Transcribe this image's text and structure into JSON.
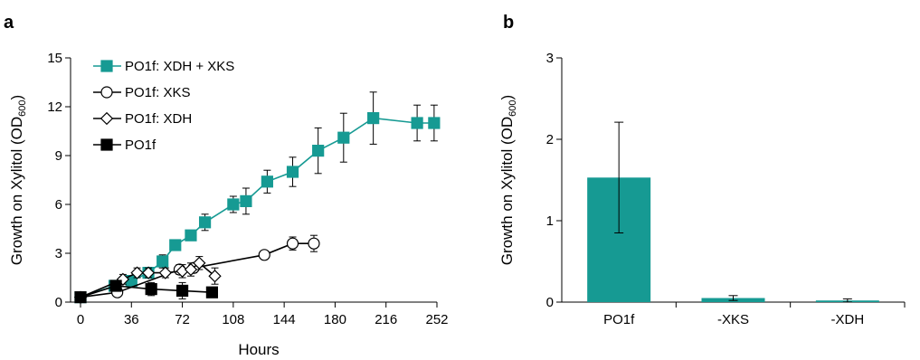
{
  "colors": {
    "teal": "#169a93",
    "black": "#000000",
    "white": "#ffffff"
  },
  "chart_data": [
    {
      "panel": "a",
      "type": "line",
      "xlabel": "Hours",
      "ylabel": "Growth on Xylitol (OD",
      "ylabel_sub": "600",
      "ylabel_close": ")",
      "xlim": [
        0,
        252
      ],
      "ylim": [
        0,
        15
      ],
      "xticks": [
        0,
        36,
        72,
        108,
        144,
        180,
        216,
        252
      ],
      "yticks": [
        0,
        3,
        6,
        9,
        12,
        15
      ],
      "legend_placement": "top-left",
      "series": [
        {
          "name": "PO1f: XDH + XKS",
          "marker": "square",
          "color": "#169a93",
          "fill": "#169a93",
          "x": [
            0,
            24,
            36,
            48,
            58,
            67,
            78,
            88,
            108,
            117,
            132,
            150,
            168,
            186,
            207,
            238,
            250
          ],
          "y": [
            0.3,
            1.0,
            1.3,
            1.8,
            2.5,
            3.5,
            4.1,
            4.9,
            6.0,
            6.2,
            7.4,
            8.0,
            9.3,
            10.1,
            11.3,
            11.0,
            11.0
          ],
          "err": [
            0.1,
            0.2,
            0.2,
            0.3,
            0.4,
            0.3,
            0.3,
            0.5,
            0.5,
            0.8,
            0.7,
            0.9,
            1.4,
            1.5,
            1.6,
            1.1,
            1.1
          ]
        },
        {
          "name": "PO1f: XKS",
          "marker": "circle",
          "color": "#000000",
          "fill": "#ffffff",
          "x": [
            0,
            26,
            70,
            80,
            130,
            150,
            165
          ],
          "y": [
            0.3,
            0.6,
            2.0,
            2.1,
            2.9,
            3.6,
            3.6
          ],
          "err": [
            0.1,
            0.2,
            0.3,
            0.3,
            0.2,
            0.4,
            0.5
          ]
        },
        {
          "name": "PO1f: XDH",
          "marker": "diamond",
          "color": "#000000",
          "fill": "#ffffff",
          "x": [
            0,
            30,
            40,
            48,
            60,
            72,
            78,
            84,
            95
          ],
          "y": [
            0.3,
            1.4,
            1.8,
            1.8,
            1.8,
            1.9,
            2.0,
            2.4,
            1.6
          ],
          "err": [
            0.1,
            0.3,
            0.3,
            0.3,
            0.3,
            0.4,
            0.4,
            0.4,
            0.5
          ]
        },
        {
          "name": "PO1f",
          "marker": "square",
          "color": "#000000",
          "fill": "#000000",
          "x": [
            0,
            25,
            50,
            72,
            93
          ],
          "y": [
            0.3,
            1.0,
            0.8,
            0.7,
            0.6
          ],
          "err": [
            0.1,
            0.3,
            0.4,
            0.5,
            0.3
          ]
        }
      ]
    },
    {
      "panel": "b",
      "type": "bar",
      "xlabel": "",
      "ylabel": "Growth on Xylitol (OD",
      "ylabel_sub": "600",
      "ylabel_close": ")",
      "ylim": [
        0,
        3
      ],
      "yticks": [
        0,
        1,
        2,
        3
      ],
      "categories": [
        "PO1f",
        "-XKS",
        "-XDH"
      ],
      "values": [
        1.53,
        0.05,
        0.02
      ],
      "err": [
        0.68,
        0.03,
        0.02
      ],
      "color": "#169a93"
    }
  ]
}
